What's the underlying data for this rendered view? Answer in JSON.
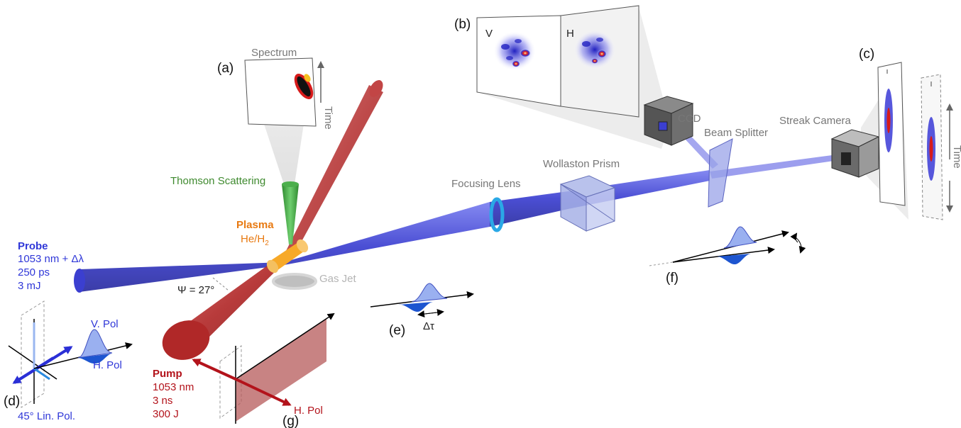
{
  "colors": {
    "probe": "#3b3fd0",
    "pump": "#b22a2a",
    "plasma": "#f7a928",
    "thomson": "#3a9e3a",
    "accent_lens": "#2aa8e6",
    "text_gray": "#777777"
  },
  "panels": {
    "a": "(a)",
    "b": "(b)",
    "c": "(c)",
    "d": "(d)",
    "e": "(e)",
    "f": "(f)",
    "g": "(g)"
  },
  "spectrum_panel": {
    "title": "Spectrum",
    "axis": "Time"
  },
  "ccd_panel": {
    "left": "V",
    "right": "H"
  },
  "streak_panel": {
    "axis": "Time"
  },
  "labels": {
    "ccd": "CCD",
    "beam_splitter": "Beam Splitter",
    "streak_camera": "Streak Camera",
    "wollaston_prism": "Wollaston Prism",
    "focusing_lens": "Focusing Lens",
    "thomson_scattering": "Thomson Scattering",
    "plasma": "Plasma",
    "plasma_gas": "He/H",
    "plasma_gas_sub": "2",
    "gas_jet": "Gas Jet",
    "angle": "Ψ = 27°"
  },
  "probe": {
    "title": "Probe",
    "wavelength": "1053 nm + Δλ",
    "duration": "250 ps",
    "energy": "3 mJ"
  },
  "pump": {
    "title": "Pump",
    "wavelength": "1053 nm",
    "duration": "3 ns",
    "energy": "300 J"
  },
  "polarization": {
    "v_pol": "V. Pol",
    "h_pol_probe": "H. Pol",
    "lin_pol": "45° Lin. Pol.",
    "h_pol_pump": "H. Pol",
    "delay": "Δτ"
  }
}
